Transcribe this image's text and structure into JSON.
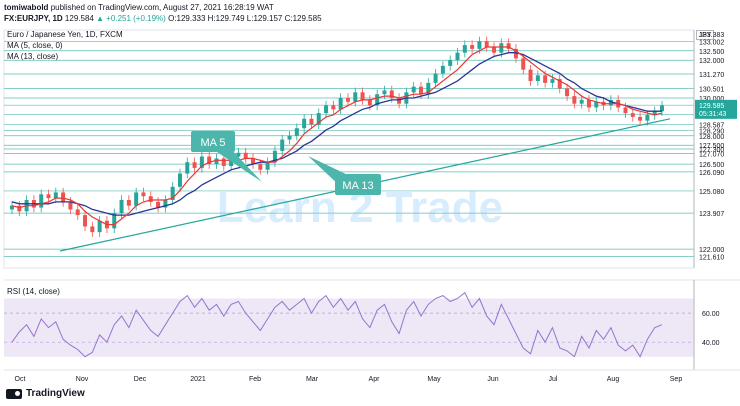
{
  "header": {
    "author": "tomiwabold",
    "published_text": "published on TradingView.com, August 27, 2021 16:28:19 WAT"
  },
  "symbol_line": {
    "symbol": "FX:EURJPY, 1D",
    "last": "129.584",
    "change": "▲ +0.251 (+0.19%)",
    "ohlc": "O:129.333 H:129.749 L:129.157 C:129.585"
  },
  "legend": {
    "title": "Euro / Japanese Yen, 1D, FXCM",
    "ma5": "MA (5, close, 0)",
    "ma13": "MA (13, close)"
  },
  "currency_badge": "JPY",
  "rsi": {
    "label": "RSI (14, close)",
    "levels": [
      "60.00",
      "40.00"
    ]
  },
  "callouts": {
    "ma5": "MA 5",
    "ma13": "MA 13"
  },
  "watermark": "Learn 2 Trade",
  "price_label": {
    "price": "129.585",
    "countdown": "05:31:43"
  },
  "footer": {
    "brand": "TradingView"
  },
  "colors": {
    "ma5": "#e53935",
    "ma13": "#283593",
    "trend": "#26a69a",
    "callout": "#4db6ac",
    "rsi_band": "#ede7f6",
    "rsi_line": "#9575cd",
    "up": "#26a69a",
    "down": "#ef5350"
  },
  "chart_data": {
    "type": "candlestick",
    "x_ticks": [
      "Oct",
      "Nov",
      "Dec",
      "2021",
      "Feb",
      "Mar",
      "Apr",
      "May",
      "Jun",
      "Jul",
      "Aug",
      "Sep"
    ],
    "y_ticks": [
      "133.383",
      "133.002",
      "132.500",
      "132.000",
      "131.270",
      "130.501",
      "130.000",
      "129.620",
      "129.130",
      "128.587",
      "128.290",
      "128.000",
      "127.500",
      "127.300",
      "127.070",
      "126.500",
      "126.090",
      "125.080",
      "123.907",
      "122.000",
      "121.610"
    ],
    "ylim": [
      121.0,
      133.6
    ],
    "horizontal_levels": [
      133.002,
      132.5,
      132.0,
      131.27,
      130.501,
      130.0,
      129.62,
      129.13,
      128.587,
      128.29,
      128.0,
      127.5,
      127.3,
      127.07,
      126.5,
      126.09,
      125.08,
      123.907,
      122.0,
      121.61
    ],
    "close_series": [
      124.3,
      124.0,
      124.6,
      124.2,
      124.9,
      124.7,
      125.0,
      124.5,
      124.1,
      123.8,
      123.2,
      122.9,
      123.5,
      123.1,
      123.9,
      124.6,
      124.3,
      125.0,
      124.8,
      124.5,
      124.2,
      124.6,
      125.3,
      126.0,
      126.6,
      126.3,
      126.9,
      126.5,
      126.8,
      126.4,
      126.9,
      127.1,
      126.8,
      126.5,
      126.2,
      126.6,
      127.2,
      127.8,
      128.0,
      128.4,
      128.9,
      128.6,
      129.2,
      129.6,
      129.4,
      130.0,
      129.8,
      130.3,
      129.9,
      129.6,
      130.2,
      130.4,
      130.0,
      129.7,
      130.3,
      130.6,
      130.2,
      130.8,
      131.3,
      131.7,
      132.0,
      132.4,
      132.8,
      132.6,
      133.0,
      132.7,
      132.4,
      132.9,
      132.6,
      132.1,
      131.5,
      130.9,
      131.2,
      130.8,
      131.0,
      130.5,
      130.1,
      129.7,
      129.9,
      129.5,
      129.8,
      129.6,
      129.9,
      129.5,
      129.2,
      129.0,
      128.8,
      129.1,
      129.3,
      129.6
    ],
    "ma5_series": [
      124.3,
      124.2,
      124.3,
      124.3,
      124.4,
      124.5,
      124.7,
      124.7,
      124.6,
      124.4,
      124.0,
      123.7,
      123.5,
      123.3,
      123.3,
      123.6,
      123.9,
      124.3,
      124.5,
      124.6,
      124.6,
      124.6,
      124.7,
      125.1,
      125.6,
      126.0,
      126.4,
      126.6,
      126.7,
      126.7,
      126.7,
      126.7,
      126.8,
      126.8,
      126.7,
      126.6,
      126.6,
      126.9,
      127.2,
      127.6,
      128.1,
      128.4,
      128.7,
      129.0,
      129.1,
      129.4,
      129.6,
      129.8,
      129.9,
      129.9,
      130.0,
      130.1,
      130.1,
      130.0,
      130.1,
      130.2,
      130.2,
      130.3,
      130.6,
      130.9,
      131.2,
      131.5,
      131.9,
      132.3,
      132.5,
      132.7,
      132.7,
      132.7,
      132.7,
      132.5,
      132.2,
      131.9,
      131.6,
      131.3,
      131.1,
      130.9,
      130.7,
      130.4,
      130.1,
      129.9,
      129.8,
      129.7,
      129.7,
      129.7,
      129.6,
      129.4,
      129.3,
      129.2,
      129.1,
      129.2
    ],
    "ma13_series": [
      124.5,
      124.4,
      124.4,
      124.4,
      124.4,
      124.4,
      124.5,
      124.5,
      124.5,
      124.4,
      124.3,
      124.1,
      124.0,
      123.9,
      123.8,
      123.8,
      123.8,
      123.9,
      124.0,
      124.1,
      124.2,
      124.3,
      124.4,
      124.6,
      124.9,
      125.1,
      125.4,
      125.6,
      125.8,
      126.0,
      126.2,
      126.3,
      126.4,
      126.5,
      126.6,
      126.6,
      126.7,
      126.8,
      127.0,
      127.2,
      127.5,
      127.7,
      128.0,
      128.3,
      128.5,
      128.8,
      129.0,
      129.2,
      129.4,
      129.5,
      129.7,
      129.8,
      129.9,
      129.9,
      130.0,
      130.0,
      130.1,
      130.2,
      130.3,
      130.5,
      130.7,
      130.9,
      131.2,
      131.5,
      131.8,
      132.0,
      132.2,
      132.3,
      132.4,
      132.4,
      132.3,
      132.1,
      131.9,
      131.7,
      131.5,
      131.3,
      131.0,
      130.8,
      130.5,
      130.3,
      130.1,
      130.0,
      129.8,
      129.7,
      129.6,
      129.5,
      129.4,
      129.3,
      129.3,
      129.3
    ],
    "trendline": [
      [
        0,
        121.9
      ],
      [
        89,
        128.9
      ]
    ],
    "rsi_series": [
      40,
      47,
      52,
      44,
      56,
      50,
      54,
      42,
      38,
      35,
      30,
      33,
      45,
      40,
      52,
      58,
      50,
      62,
      55,
      48,
      44,
      52,
      60,
      68,
      72,
      64,
      70,
      62,
      66,
      58,
      66,
      68,
      60,
      54,
      48,
      56,
      64,
      68,
      62,
      66,
      70,
      60,
      68,
      72,
      64,
      70,
      62,
      68,
      56,
      50,
      62,
      66,
      54,
      46,
      62,
      68,
      58,
      66,
      70,
      72,
      68,
      70,
      74,
      64,
      70,
      58,
      52,
      66,
      56,
      46,
      36,
      32,
      48,
      40,
      50,
      36,
      34,
      30,
      44,
      36,
      48,
      42,
      50,
      38,
      34,
      38,
      30,
      42,
      50,
      52
    ],
    "rsi_ylim": [
      25,
      80
    ]
  }
}
